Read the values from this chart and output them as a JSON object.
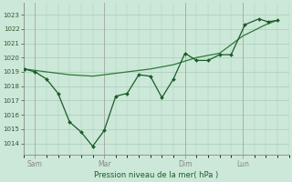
{
  "background_color": "#cce8d8",
  "grid_color": "#aaccb8",
  "line_color_jagged": "#1a5c2a",
  "line_color_smooth": "#2d7a3a",
  "xlabel": "Pression niveau de la mer( hPa )",
  "ylabel_ticks": [
    1014,
    1015,
    1016,
    1017,
    1018,
    1019,
    1020,
    1021,
    1022,
    1023
  ],
  "x_tick_labels": [
    "Sam",
    "Mar",
    "Dim",
    "Lun"
  ],
  "x_tick_positions": [
    0.5,
    3.5,
    7.0,
    9.5
  ],
  "xlim": [
    0,
    11.5
  ],
  "ylim": [
    1013.2,
    1023.8
  ],
  "jagged_x": [
    0.05,
    0.5,
    1.0,
    1.5,
    2.0,
    2.5,
    3.0,
    3.5,
    4.0,
    4.5,
    5.0,
    5.5,
    6.0,
    6.5,
    7.0,
    7.5,
    8.0,
    8.5,
    9.0,
    9.6,
    10.2,
    10.6,
    11.0
  ],
  "jagged_y": [
    1019.2,
    1019.0,
    1018.5,
    1017.5,
    1015.5,
    1014.8,
    1013.8,
    1014.9,
    1017.3,
    1017.5,
    1018.8,
    1018.7,
    1017.2,
    1018.5,
    1020.3,
    1019.8,
    1019.8,
    1020.2,
    1020.2,
    1022.3,
    1022.7,
    1022.5,
    1022.6
  ],
  "smooth_x": [
    0.05,
    1.0,
    2.0,
    3.0,
    3.5,
    4.5,
    5.5,
    6.5,
    7.5,
    8.5,
    9.5,
    10.5,
    11.0
  ],
  "smooth_y": [
    1019.2,
    1019.0,
    1018.8,
    1018.7,
    1018.8,
    1019.0,
    1019.2,
    1019.5,
    1020.0,
    1020.3,
    1021.5,
    1022.3,
    1022.6
  ],
  "vline_positions": [
    0.5,
    3.5,
    7.0,
    9.5
  ],
  "vline_color": "#aaaaaa"
}
